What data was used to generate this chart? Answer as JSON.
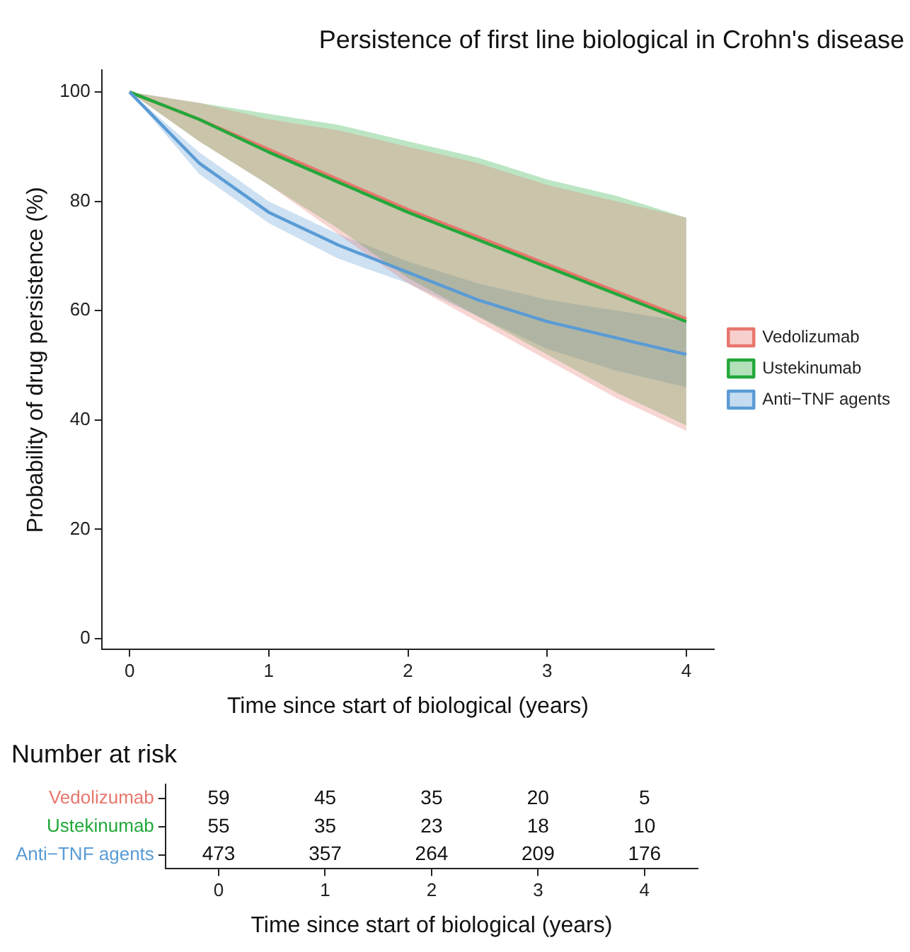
{
  "chart_data": [
    {
      "type": "line",
      "title": "Persistence of first line biological in Crohn's disease",
      "xlabel": "Time since start of biological (years)",
      "ylabel": "Probability of drug persistence (%)",
      "xlim": [
        -0.2,
        4.2
      ],
      "xticks": [
        0,
        1,
        2,
        3,
        4
      ],
      "ylim": [
        -2,
        104
      ],
      "yticks": [
        0,
        20,
        40,
        60,
        80,
        100
      ],
      "grid": false,
      "legend": "right",
      "marker": "none",
      "line_style": "solid",
      "series": [
        {
          "name": "Vedolizumab",
          "color": "#e8766d",
          "x": [
            0,
            0.5,
            1,
            1.5,
            2,
            2.5,
            3,
            3.5,
            4
          ],
          "values": [
            100,
            95,
            89.5,
            84,
            78.5,
            73.5,
            68.5,
            63.5,
            58.5
          ],
          "lower": [
            100,
            91,
            83,
            74,
            65,
            58,
            51,
            44,
            38
          ],
          "upper": [
            100,
            98,
            95,
            93,
            90,
            87,
            83,
            80,
            77
          ]
        },
        {
          "name": "Ustekinumab",
          "color": "#22a83a",
          "x": [
            0,
            0.5,
            1,
            1.5,
            2,
            2.5,
            3,
            3.5,
            4
          ],
          "values": [
            100,
            95,
            89,
            83.5,
            78,
            73,
            68,
            63,
            58
          ],
          "lower": [
            100,
            91,
            83,
            75,
            66,
            59,
            52,
            45,
            39
          ],
          "upper": [
            100,
            98,
            96,
            94,
            91,
            88,
            84,
            81,
            77
          ]
        },
        {
          "name": "Anti−TNF agents",
          "color": "#5a9bd5",
          "x": [
            0,
            0.5,
            1,
            1.5,
            2,
            2.5,
            3,
            3.5,
            4
          ],
          "values": [
            100,
            87,
            78,
            72,
            67,
            62,
            58,
            55,
            52
          ],
          "lower": [
            100,
            85,
            76,
            69.5,
            65,
            59,
            53,
            49,
            46
          ],
          "upper": [
            100,
            89,
            80,
            74,
            69,
            65,
            62,
            60,
            58
          ]
        }
      ]
    },
    {
      "type": "heatmap",
      "title": "Number at risk",
      "xlabel": "Time since start of biological (years)",
      "categories": [
        "0",
        "1",
        "2",
        "3",
        "4"
      ],
      "y_categories": [
        "Vedolizumab",
        "Ustekinumab",
        "Anti−TNF agents"
      ],
      "colors": [
        "#e8766d",
        "#22a83a",
        "#5a9bd5"
      ],
      "data_labels": true,
      "cells": [
        [
          59,
          45,
          35,
          20,
          5
        ],
        [
          55,
          35,
          23,
          18,
          10
        ],
        [
          473,
          357,
          264,
          209,
          176
        ]
      ]
    }
  ]
}
